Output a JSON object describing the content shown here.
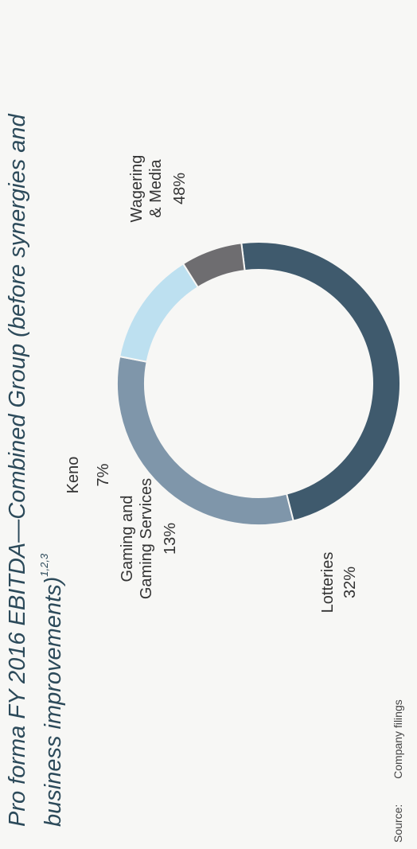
{
  "title": {
    "line1": "Pro forma FY 2016 EBITDA—Combined Group (before synergies and",
    "line2": "business improvements)",
    "footnote_refs": "1,2,3"
  },
  "source": {
    "label": "Source:",
    "text": "Company filings"
  },
  "chart_data": {
    "type": "pie",
    "donut": true,
    "title": "Pro forma FY 2016 EBITDA—Combined Group (before synergies and business improvements)",
    "labels": [
      "Wagering & Media",
      "Lotteries",
      "Gaming and Gaming Services",
      "Keno"
    ],
    "values": [
      48,
      32,
      13,
      7
    ],
    "value_labels": [
      "48%",
      "32%",
      "13%",
      "7%"
    ],
    "colors": [
      "#3f5a6d",
      "#7f96aa",
      "#bde0f0",
      "#6e6d70"
    ]
  },
  "labels": {
    "wagering": {
      "line1": "Wagering",
      "line2": "& Media",
      "pct": "48%"
    },
    "lotteries": {
      "line1": "Lotteries",
      "pct": "32%"
    },
    "gaming": {
      "line1": "Gaming and",
      "line2": "Gaming Services",
      "pct": "13%"
    },
    "keno": {
      "line1": "Keno",
      "pct": "7%"
    }
  }
}
